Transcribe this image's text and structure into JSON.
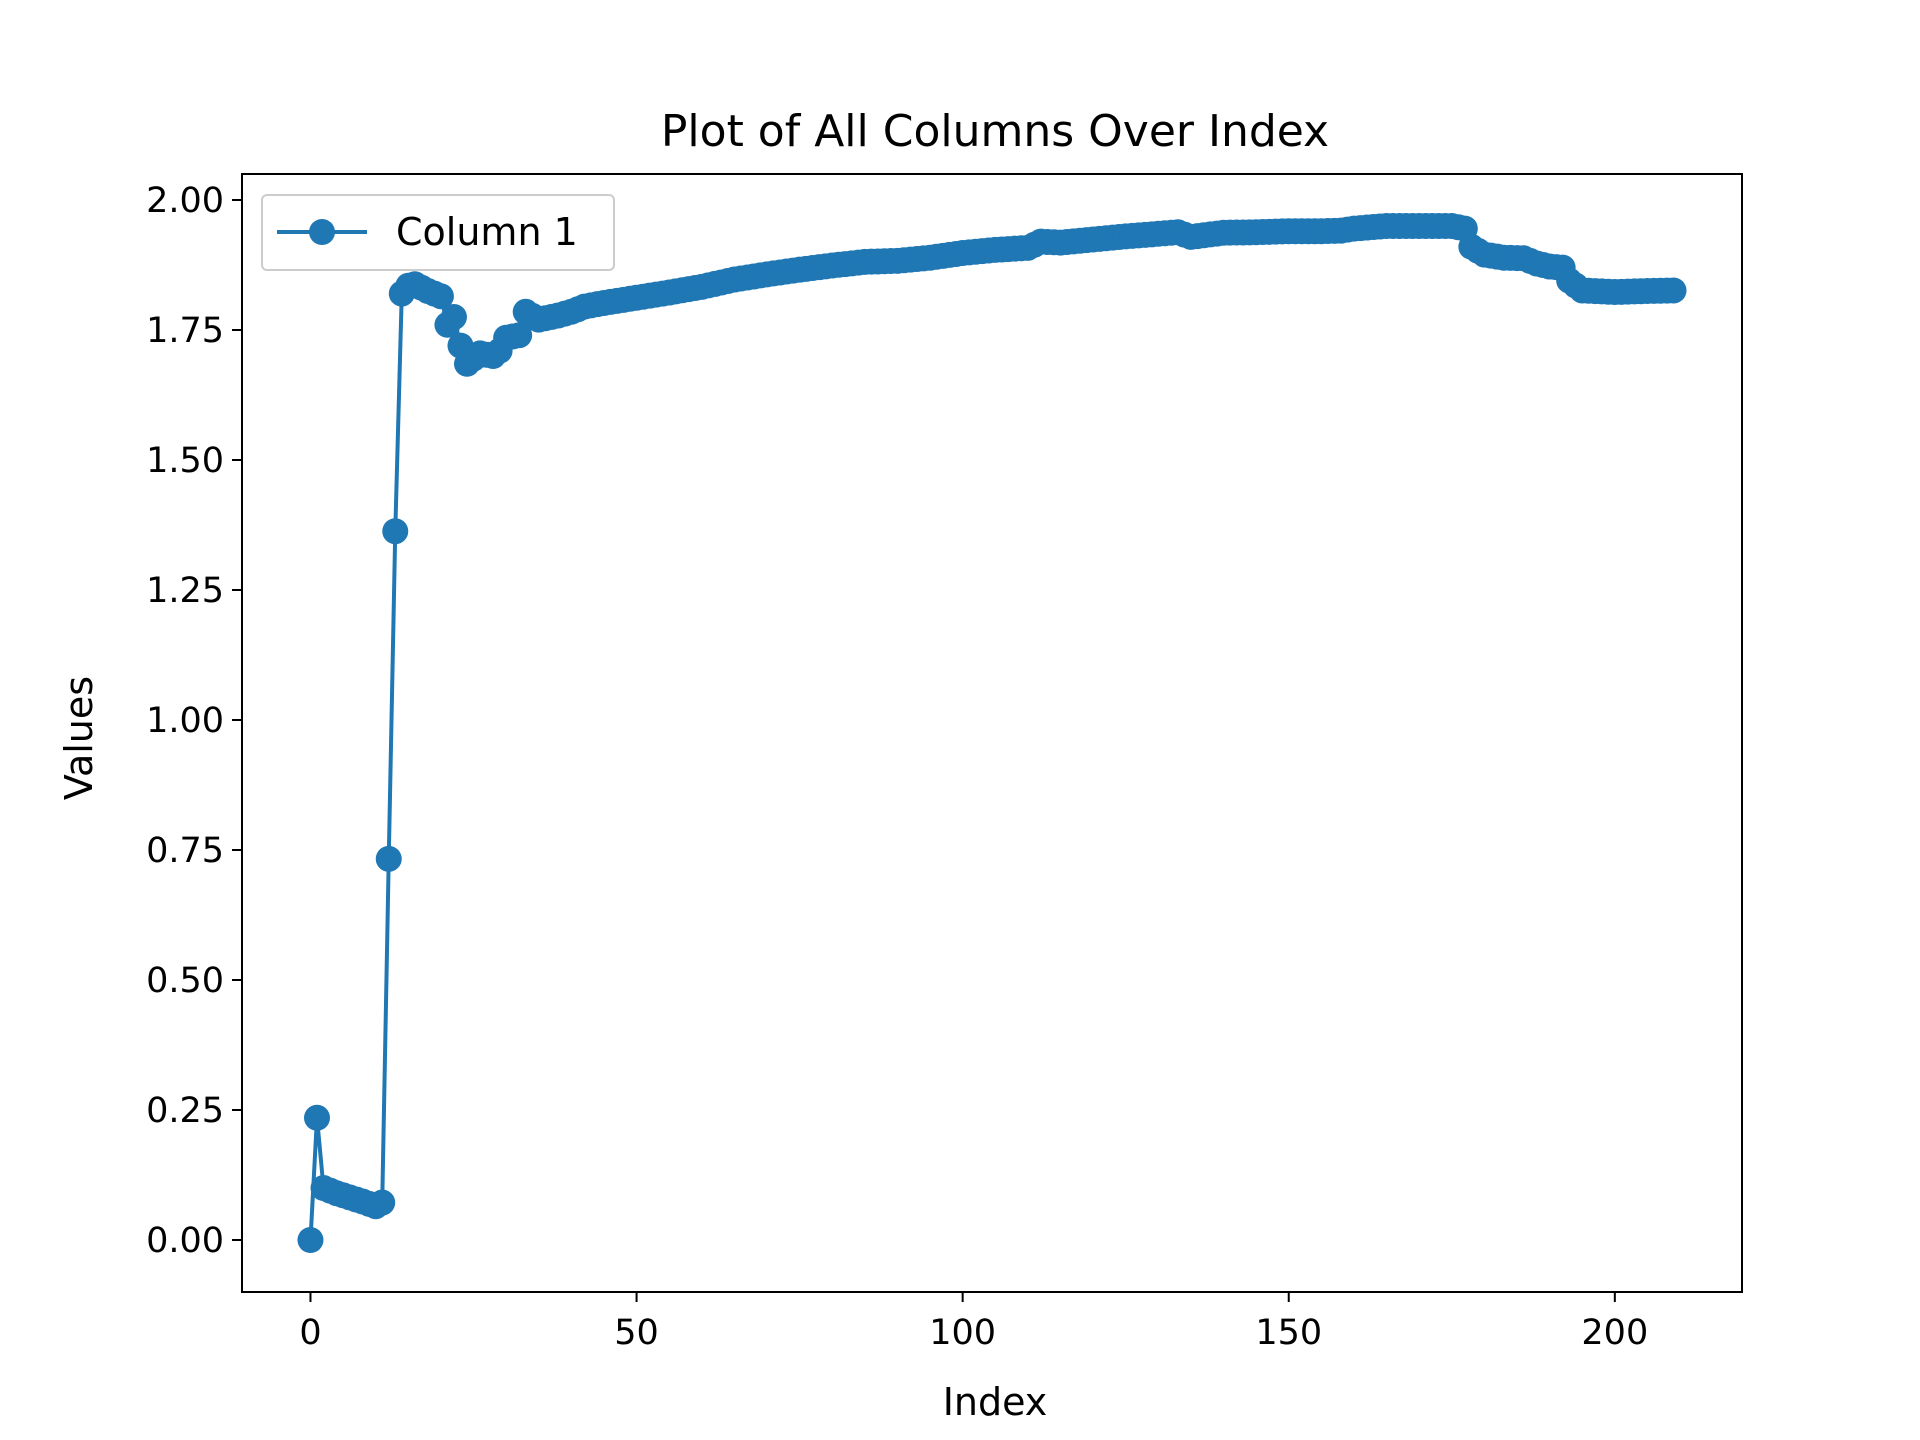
{
  "chart_data": {
    "type": "line",
    "title": "Plot of All Columns Over Index",
    "xlabel": "Index",
    "ylabel": "Values",
    "xlim": [
      -10.5,
      219.5
    ],
    "ylim": [
      -0.1,
      2.05
    ],
    "xticks": [
      0,
      50,
      100,
      150,
      200
    ],
    "xtick_labels": [
      "0",
      "50",
      "100",
      "150",
      "200"
    ],
    "yticks": [
      0,
      0.25,
      0.5,
      0.75,
      1.0,
      1.25,
      1.5,
      1.75,
      2.0
    ],
    "ytick_labels": [
      "0.00",
      "0.25",
      "0.50",
      "0.75",
      "1.00",
      "1.25",
      "1.50",
      "1.75",
      "2.00"
    ],
    "grid": false,
    "legend_position": "top-left",
    "series": [
      {
        "name": "Column 1",
        "color": "#1f77b4",
        "marker": "circle",
        "points": [
          [
            0,
            0.0
          ],
          [
            1,
            0.235
          ],
          [
            2,
            0.1
          ],
          [
            4,
            0.09
          ],
          [
            6,
            0.082
          ],
          [
            8,
            0.074
          ],
          [
            10,
            0.065
          ],
          [
            11,
            0.072
          ],
          [
            12,
            0.733
          ],
          [
            13,
            1.363
          ],
          [
            14,
            1.82
          ],
          [
            15,
            1.835
          ],
          [
            16,
            1.838
          ],
          [
            18,
            1.825
          ],
          [
            20,
            1.815
          ],
          [
            21,
            1.76
          ],
          [
            22,
            1.775
          ],
          [
            23,
            1.72
          ],
          [
            24,
            1.685
          ],
          [
            26,
            1.705
          ],
          [
            28,
            1.7
          ],
          [
            29,
            1.71
          ],
          [
            30,
            1.735
          ],
          [
            32,
            1.74
          ],
          [
            33,
            1.785
          ],
          [
            35,
            1.77
          ],
          [
            38,
            1.778
          ],
          [
            40,
            1.785
          ],
          [
            42,
            1.795
          ],
          [
            45,
            1.802
          ],
          [
            50,
            1.812
          ],
          [
            55,
            1.822
          ],
          [
            60,
            1.833
          ],
          [
            65,
            1.847
          ],
          [
            70,
            1.857
          ],
          [
            75,
            1.866
          ],
          [
            80,
            1.874
          ],
          [
            85,
            1.881
          ],
          [
            90,
            1.883
          ],
          [
            95,
            1.889
          ],
          [
            100,
            1.898
          ],
          [
            105,
            1.904
          ],
          [
            110,
            1.908
          ],
          [
            112,
            1.92
          ],
          [
            115,
            1.918
          ],
          [
            120,
            1.924
          ],
          [
            125,
            1.93
          ],
          [
            130,
            1.935
          ],
          [
            133,
            1.938
          ],
          [
            135,
            1.929
          ],
          [
            140,
            1.937
          ],
          [
            145,
            1.938
          ],
          [
            150,
            1.94
          ],
          [
            155,
            1.94
          ],
          [
            158,
            1.941
          ],
          [
            160,
            1.945
          ],
          [
            165,
            1.95
          ],
          [
            170,
            1.95
          ],
          [
            175,
            1.95
          ],
          [
            177,
            1.945
          ],
          [
            178,
            1.91
          ],
          [
            180,
            1.895
          ],
          [
            183,
            1.889
          ],
          [
            186,
            1.888
          ],
          [
            188,
            1.878
          ],
          [
            190,
            1.872
          ],
          [
            192,
            1.87
          ],
          [
            193,
            1.845
          ],
          [
            195,
            1.826
          ],
          [
            200,
            1.823
          ],
          [
            205,
            1.825
          ],
          [
            209,
            1.826
          ]
        ]
      }
    ]
  }
}
